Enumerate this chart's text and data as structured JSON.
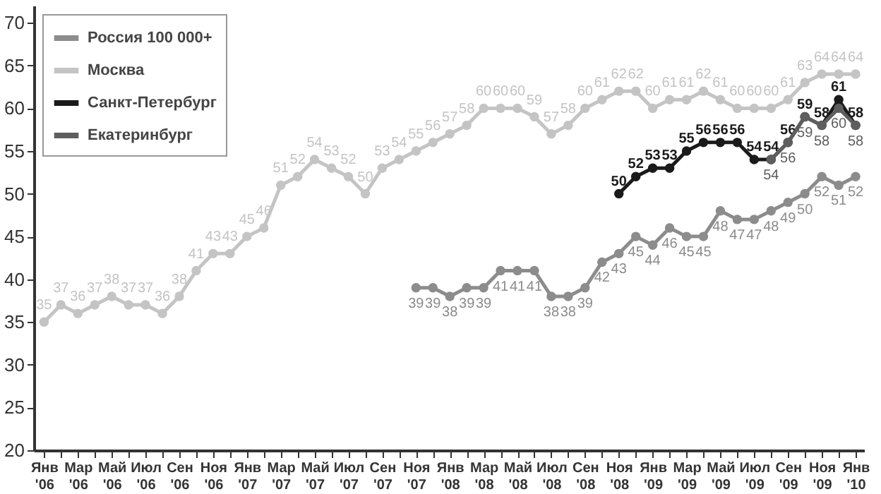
{
  "chart_data": {
    "type": "line",
    "categories": [
      "Янв '06",
      null,
      "Мар '06",
      null,
      "Май '06",
      null,
      "Июл '06",
      null,
      "Сен '06",
      null,
      "Ноя '06",
      null,
      "Янв '07",
      null,
      "Мар '07",
      null,
      "Май '07",
      null,
      "Июл '07",
      null,
      "Сен '07",
      null,
      "Ноя '07",
      null,
      "Янв '08",
      null,
      "Мар '08",
      null,
      "Май '08",
      null,
      "Июл '08",
      null,
      "Сен '08",
      null,
      "Ноя '08",
      null,
      "Янв '09",
      null,
      "Мар '09",
      null,
      "Май '09",
      null,
      "Июл '09",
      null,
      "Сен '09",
      null,
      "Ноя '09",
      null,
      "Янв '10"
    ],
    "series": [
      {
        "name": "Россия 100 000+",
        "color": "#8c8c8c",
        "values": [
          null,
          null,
          null,
          null,
          null,
          null,
          null,
          null,
          null,
          null,
          null,
          null,
          null,
          null,
          null,
          null,
          null,
          null,
          null,
          null,
          null,
          null,
          39,
          39,
          38,
          39,
          39,
          41,
          41,
          41,
          38,
          38,
          39,
          42,
          43,
          45,
          44,
          46,
          45,
          45,
          48,
          47,
          47,
          48,
          49,
          50,
          52,
          51,
          52
        ]
      },
      {
        "name": "Москва",
        "color": "#c4c4c4",
        "values": [
          35,
          37,
          36,
          37,
          38,
          37,
          37,
          36,
          38,
          41,
          43,
          43,
          45,
          46,
          51,
          52,
          54,
          53,
          52,
          50,
          53,
          54,
          55,
          56,
          57,
          58,
          60,
          60,
          60,
          59,
          57,
          58,
          60,
          61,
          62,
          62,
          60,
          61,
          61,
          62,
          61,
          60,
          60,
          60,
          61,
          63,
          64,
          64,
          64
        ]
      },
      {
        "name": "Санкт-Петербург",
        "color": "#1a1a1a",
        "values": [
          null,
          null,
          null,
          null,
          null,
          null,
          null,
          null,
          null,
          null,
          null,
          null,
          null,
          null,
          null,
          null,
          null,
          null,
          null,
          null,
          null,
          null,
          null,
          null,
          null,
          null,
          null,
          null,
          null,
          null,
          null,
          null,
          null,
          null,
          50,
          52,
          53,
          53,
          55,
          56,
          56,
          56,
          54,
          54,
          56,
          59,
          58,
          61,
          58
        ]
      },
      {
        "name": "Екатеринбург",
        "color": "#5e5e5e",
        "values": [
          null,
          null,
          null,
          null,
          null,
          null,
          null,
          null,
          null,
          null,
          null,
          null,
          null,
          null,
          null,
          null,
          null,
          null,
          null,
          null,
          null,
          null,
          null,
          null,
          null,
          null,
          null,
          null,
          null,
          null,
          null,
          null,
          null,
          null,
          null,
          null,
          null,
          null,
          null,
          null,
          null,
          null,
          null,
          54,
          56,
          59,
          58,
          60,
          58
        ]
      }
    ],
    "ylim": [
      20,
      72
    ],
    "yticks": [
      20,
      25,
      30,
      35,
      40,
      45,
      50,
      55,
      60,
      65,
      70
    ],
    "grid": false,
    "legend": "top left",
    "marker": "circle",
    "data_labels": true
  }
}
